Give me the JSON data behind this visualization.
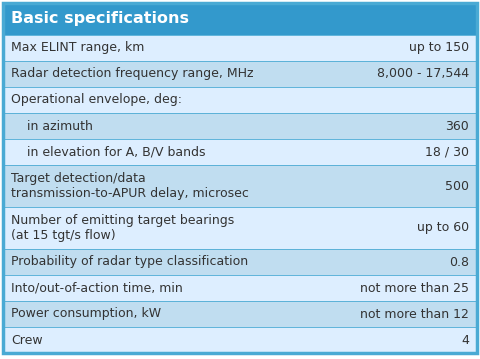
{
  "title": "Basic specifications",
  "title_bg": "#3399cc",
  "title_color": "#ffffff",
  "header_fontsize": 11.5,
  "row_fontsize": 9.0,
  "rows": [
    {
      "left": "Max ELINT range, km",
      "right": "up to 150",
      "bg": "#ddeeff",
      "indent": false,
      "lines": 1
    },
    {
      "left": "Radar detection frequency range, MHz",
      "right": "8,000 - 17,544",
      "bg": "#c0ddf0",
      "indent": false,
      "lines": 1
    },
    {
      "left": "Operational envelope, deg:",
      "right": "",
      "bg": "#ddeeff",
      "indent": false,
      "lines": 1
    },
    {
      "left": "    in azimuth",
      "right": "360",
      "bg": "#c0ddf0",
      "indent": false,
      "lines": 1
    },
    {
      "left": "    in elevation for A, B/V bands",
      "right": "18 / 30",
      "bg": "#ddeeff",
      "indent": false,
      "lines": 1
    },
    {
      "left": "Target detection/data\ntransmission-to-APUR delay, microsec",
      "right": "500",
      "bg": "#c0ddf0",
      "indent": false,
      "lines": 2
    },
    {
      "left": "Number of emitting target bearings\n(at 15 tgt/s flow)",
      "right": "up to 60",
      "bg": "#ddeeff",
      "indent": false,
      "lines": 2
    },
    {
      "left": "Probability of radar type classification",
      "right": "0.8",
      "bg": "#c0ddf0",
      "indent": false,
      "lines": 1
    },
    {
      "left": "Into/out-of-action time, min",
      "right": "not more than 25",
      "bg": "#ddeeff",
      "indent": false,
      "lines": 1
    },
    {
      "left": "Power consumption, kW",
      "right": "not more than 12",
      "bg": "#c0ddf0",
      "indent": false,
      "lines": 1
    },
    {
      "left": "Crew",
      "right": "4",
      "bg": "#ddeeff",
      "indent": false,
      "lines": 1
    }
  ],
  "border_color": "#4aaad4",
  "text_color": "#333333"
}
